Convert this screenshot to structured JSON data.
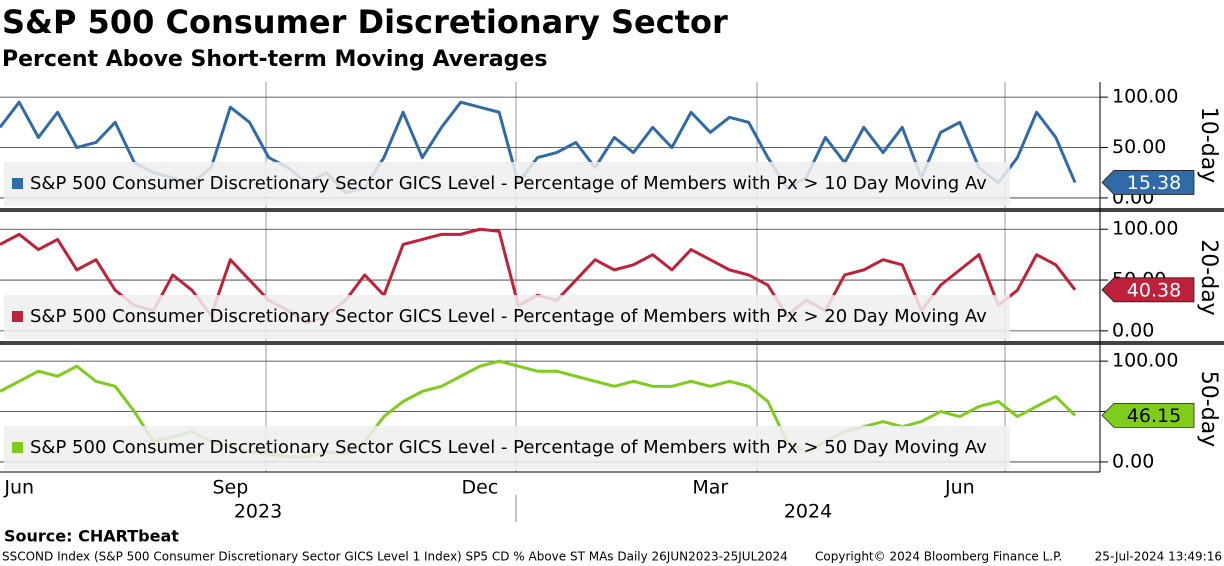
{
  "chart_data": {
    "type": "line",
    "title": "S&P 500 Consumer Discretionary Sector",
    "subtitle": "Percent Above Short-term Moving Averages",
    "categories": [
      null,
      "Jun",
      null,
      null,
      null,
      null,
      null,
      null,
      null,
      null,
      null,
      null,
      "Sep",
      null,
      null,
      null,
      null,
      null,
      null,
      null,
      null,
      null,
      null,
      null,
      null,
      "Dec",
      null,
      null,
      null,
      null,
      null,
      null,
      null,
      null,
      null,
      null,
      null,
      "Mar",
      null,
      null,
      null,
      null,
      null,
      null,
      null,
      null,
      null,
      null,
      null,
      null,
      "Jun",
      null,
      null,
      null,
      null,
      null,
      null
    ],
    "years": [
      "2023",
      "2024"
    ],
    "ylim": [
      -10,
      115
    ],
    "yticks": [
      {
        "value": 0,
        "label": "0.00"
      },
      {
        "value": 50,
        "label": "50.00"
      },
      {
        "value": 100,
        "label": "100.00"
      }
    ],
    "series": [
      {
        "name": "S&P 500 Consumer Discretionary Sector GICS Level - Percentage of Members with Px > 10 Day Moving Av",
        "panel_label": "10-day",
        "color": "#2f6ba8",
        "values": [
          70,
          95,
          60,
          85,
          50,
          55,
          75,
          35,
          25,
          20,
          15,
          30,
          90,
          75,
          40,
          30,
          15,
          25,
          5,
          10,
          40,
          85,
          40,
          70,
          95,
          90,
          85,
          15,
          40,
          45,
          55,
          30,
          60,
          45,
          70,
          50,
          85,
          65,
          80,
          75,
          40,
          10,
          20,
          60,
          35,
          70,
          45,
          70,
          20,
          65,
          75,
          30,
          15,
          40,
          85,
          60,
          15.38
        ]
      },
      {
        "name": "S&P 500 Consumer Discretionary Sector GICS Level - Percentage of Members with Px > 20 Day Moving Av",
        "panel_label": "20-day",
        "color": "#c0213a",
        "values": [
          85,
          95,
          80,
          90,
          60,
          70,
          40,
          25,
          20,
          55,
          40,
          15,
          70,
          50,
          30,
          20,
          8,
          15,
          30,
          55,
          35,
          85,
          90,
          95,
          95,
          100,
          98,
          25,
          35,
          30,
          50,
          70,
          60,
          65,
          75,
          60,
          80,
          70,
          60,
          55,
          45,
          15,
          30,
          20,
          55,
          60,
          70,
          65,
          20,
          45,
          60,
          75,
          25,
          40,
          75,
          65,
          40.38
        ]
      },
      {
        "name": "S&P 500 Consumer Discretionary Sector GICS Level - Percentage of Members with Px > 50 Day Moving Av",
        "panel_label": "50-day",
        "color": "#7fcc1c",
        "values": [
          70,
          80,
          90,
          85,
          95,
          80,
          75,
          50,
          20,
          25,
          30,
          20,
          15,
          10,
          8,
          5,
          5,
          10,
          8,
          20,
          45,
          60,
          70,
          75,
          85,
          95,
          100,
          95,
          90,
          90,
          85,
          80,
          75,
          80,
          75,
          75,
          80,
          75,
          80,
          75,
          60,
          20,
          10,
          20,
          30,
          35,
          40,
          35,
          40,
          50,
          45,
          55,
          60,
          45,
          55,
          65,
          46.15
        ]
      }
    ],
    "source": "Source: CHARTbeat",
    "footer_left": "SSCOND Index (S&P 500 Consumer Discretionary Sector GICS Level 1 Index) SP5 CD % Above ST MAs  Daily 26JUN2023-25JUL2024",
    "footer_mid": "Copyright© 2024 Bloomberg Finance L.P.",
    "footer_right": "25-Jul-2024 13:49:16"
  }
}
